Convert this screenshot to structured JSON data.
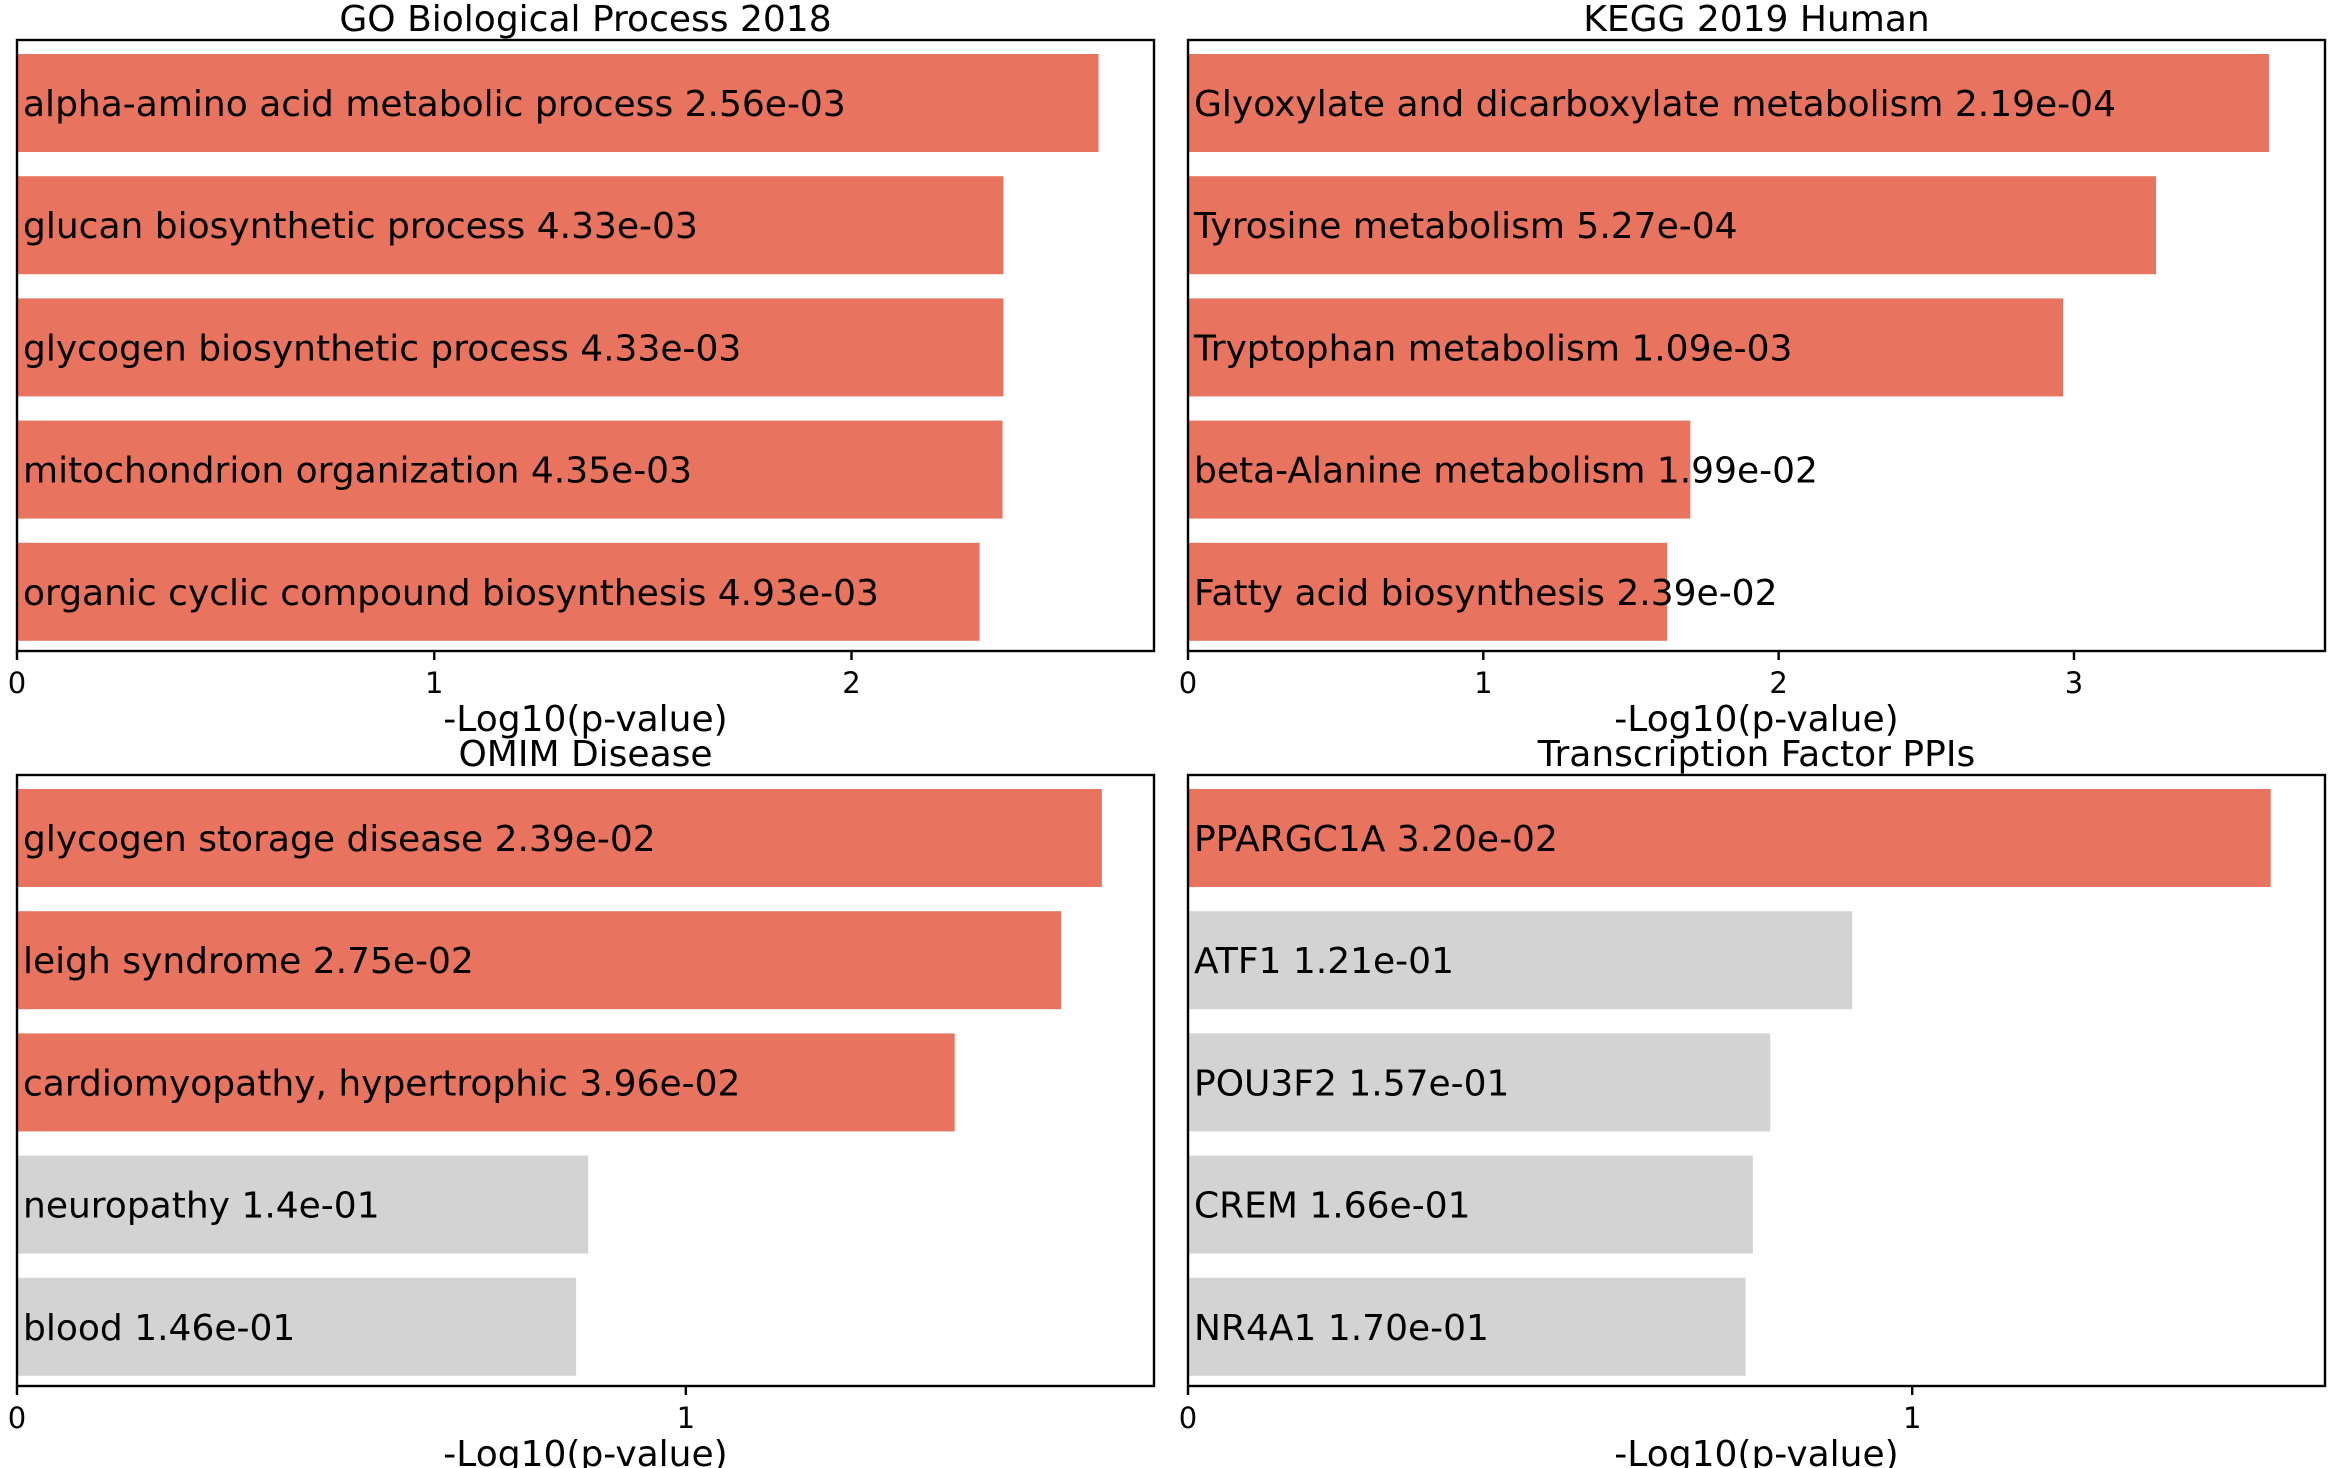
{
  "colors": {
    "significant": "#e8735f",
    "not_significant": "#d3d3d3"
  },
  "chart_data": [
    {
      "type": "bar",
      "orientation": "horizontal",
      "title": "GO Biological Process 2018",
      "xlabel": "-Log10(p-value)",
      "xlim": [
        0,
        2.725
      ],
      "xticks": [
        "0",
        "1",
        "2"
      ],
      "categories": [
        "alpha-amino acid metabolic process",
        "glucan biosynthetic process",
        "glycogen biosynthetic process",
        "mitochondrion organization",
        "organic cyclic compound biosynthesis"
      ],
      "pvalue_labels": [
        "2.56e-03",
        "4.33e-03",
        "4.33e-03",
        "4.35e-03",
        "4.93e-03"
      ],
      "values": [
        2.592,
        2.364,
        2.364,
        2.362,
        2.307
      ],
      "significant": [
        true,
        true,
        true,
        true,
        true
      ]
    },
    {
      "type": "bar",
      "orientation": "horizontal",
      "title": "KEGG 2019 Human",
      "xlabel": "-Log10(p-value)",
      "xlim": [
        0,
        3.85
      ],
      "xticks": [
        "0",
        "1",
        "2",
        "3"
      ],
      "categories": [
        "Glyoxylate and dicarboxylate metabolism",
        "Tyrosine metabolism",
        "Tryptophan metabolism",
        "beta-Alanine metabolism",
        "Fatty acid biosynthesis"
      ],
      "pvalue_labels": [
        "2.19e-04",
        "5.27e-04",
        "1.09e-03",
        "1.99e-02",
        "2.39e-02"
      ],
      "values": [
        3.66,
        3.278,
        2.963,
        1.701,
        1.622
      ],
      "significant": [
        true,
        true,
        true,
        true,
        true
      ]
    },
    {
      "type": "bar",
      "orientation": "horizontal",
      "title": "OMIM Disease",
      "xlabel": "-Log10(p-value)",
      "xlim": [
        0,
        1.7
      ],
      "xticks": [
        "0",
        "1"
      ],
      "categories": [
        "glycogen storage disease",
        "leigh syndrome",
        "cardiomyopathy, hypertrophic",
        "neuropathy",
        "blood"
      ],
      "pvalue_labels": [
        "2.39e-02",
        "2.75e-02",
        "3.96e-02",
        "1.4e-01",
        "1.46e-01"
      ],
      "values": [
        1.622,
        1.561,
        1.402,
        0.854,
        0.836
      ],
      "significant": [
        true,
        true,
        true,
        false,
        false
      ]
    },
    {
      "type": "bar",
      "orientation": "horizontal",
      "title": "Transcription Factor PPIs",
      "xlabel": "-Log10(p-value)",
      "xlim": [
        0,
        1.57
      ],
      "xticks": [
        "0",
        "1"
      ],
      "categories": [
        "PPARGC1A",
        "ATF1",
        "POU3F2",
        "CREM",
        "NR4A1"
      ],
      "pvalue_labels": [
        "3.20e-02",
        "1.21e-01",
        "1.57e-01",
        "1.66e-01",
        "1.70e-01"
      ],
      "values": [
        1.495,
        0.917,
        0.804,
        0.78,
        0.77
      ],
      "significant": [
        true,
        false,
        false,
        false,
        false
      ]
    }
  ]
}
